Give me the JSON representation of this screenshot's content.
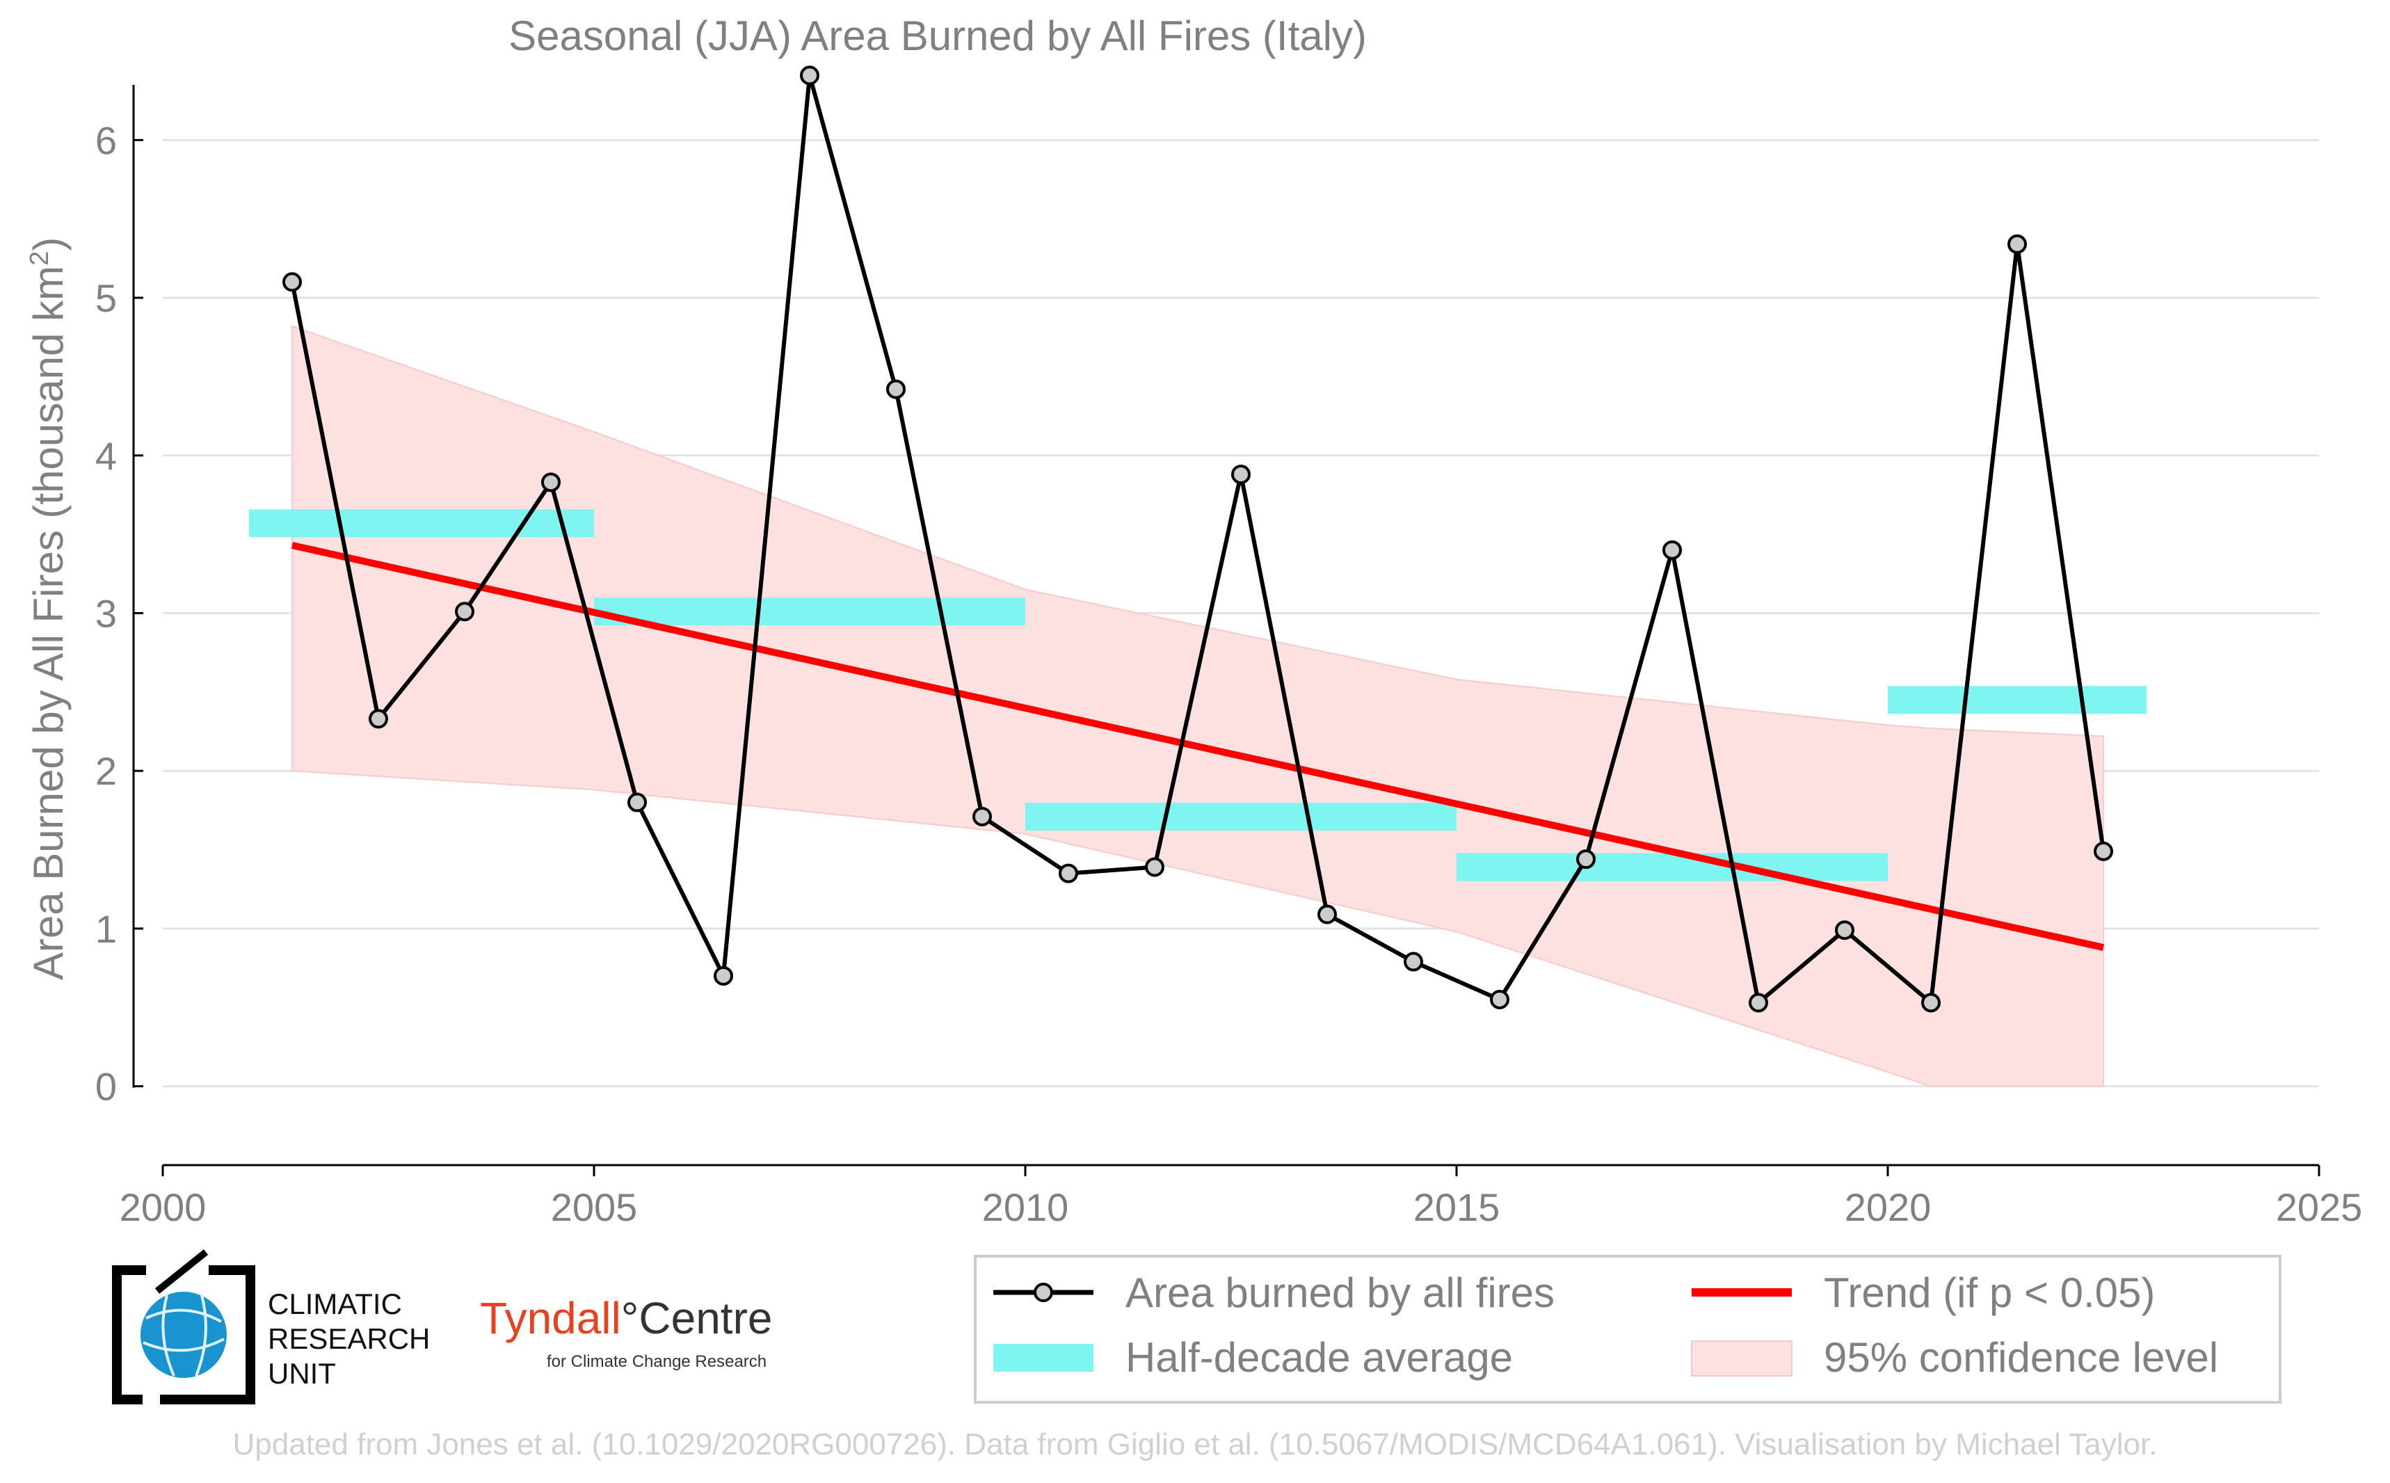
{
  "chart_data": {
    "type": "line",
    "title": "Seasonal (JJA) Area Burned by All Fires (Italy)",
    "ylabel_main": "Area Burned by All Fires (thousand km",
    "ylabel_sup": "2",
    "ylabel_close": ")",
    "xlabel": "",
    "xlim": [
      2000,
      2025
    ],
    "ylim": [
      -0.5,
      6.5
    ],
    "x_ticks": [
      2000,
      2005,
      2010,
      2015,
      2020,
      2025
    ],
    "y_ticks": [
      0,
      1,
      2,
      3,
      4,
      5,
      6
    ],
    "grid": "horizontal",
    "legend_position": "bottom-right",
    "series": [
      {
        "name": "Area burned by all fires",
        "color": "#000000",
        "marker_fill": "#cccccc",
        "x": [
          2001.5,
          2002.5,
          2003.5,
          2004.5,
          2005.5,
          2006.5,
          2007.5,
          2008.5,
          2009.5,
          2010.5,
          2011.5,
          2012.5,
          2013.5,
          2014.5,
          2015.5,
          2016.5,
          2017.5,
          2018.5,
          2019.5,
          2020.5,
          2021.5,
          2022.5
        ],
        "y": [
          5.1,
          2.33,
          3.01,
          3.83,
          1.8,
          0.7,
          6.41,
          4.42,
          1.71,
          1.35,
          1.39,
          3.88,
          1.09,
          0.79,
          0.55,
          1.44,
          3.4,
          0.53,
          0.99,
          0.53,
          5.34,
          1.49
        ]
      }
    ],
    "half_decade_averages": {
      "name": "Half-decade average",
      "color": "#7ef5f0",
      "segments": [
        {
          "x0": 2001.0,
          "x1": 2005.0,
          "y": 3.57
        },
        {
          "x0": 2005.0,
          "x1": 2010.0,
          "y": 3.01
        },
        {
          "x0": 2010.0,
          "x1": 2015.0,
          "y": 1.71
        },
        {
          "x0": 2015.0,
          "x1": 2020.0,
          "y": 1.39
        },
        {
          "x0": 2020.0,
          "x1": 2023.0,
          "y": 2.45
        }
      ]
    },
    "trend": {
      "name": "Trend (if p < 0.05)",
      "color": "#ff0000",
      "x": [
        2001.5,
        2022.5
      ],
      "y": [
        3.43,
        0.88
      ]
    },
    "confidence_band": {
      "name": "95% confidence level",
      "color": "#fde0e0",
      "x": [
        2001.5,
        2005.0,
        2010.0,
        2015.0,
        2020.0,
        2020.5,
        2022.5
      ],
      "upper": [
        4.82,
        4.15,
        3.15,
        2.58,
        2.29,
        2.27,
        2.22
      ],
      "lower": [
        2.0,
        1.88,
        1.6,
        0.98,
        0.09,
        0.0,
        0.0
      ]
    },
    "legend": [
      {
        "label": "Area burned by all fires"
      },
      {
        "label": "Trend (if p < 0.05)"
      },
      {
        "label": "Half-decade average"
      },
      {
        "label": "95% confidence level"
      }
    ]
  },
  "logos": {
    "cru_line1": "CLIMATIC",
    "cru_line2": "RESEARCH",
    "cru_line3": "UNIT",
    "tyndall_name": "Tyndall",
    "tyndall_degree": "°",
    "tyndall_centre": "Centre",
    "tyndall_sub": "for Climate Change Research"
  },
  "footer": "Updated from Jones et al. (10.1029/2020RG000726). Data from Giglio et al. (10.5067/MODIS/MCD64A1.061). Visualisation by Michael Taylor."
}
